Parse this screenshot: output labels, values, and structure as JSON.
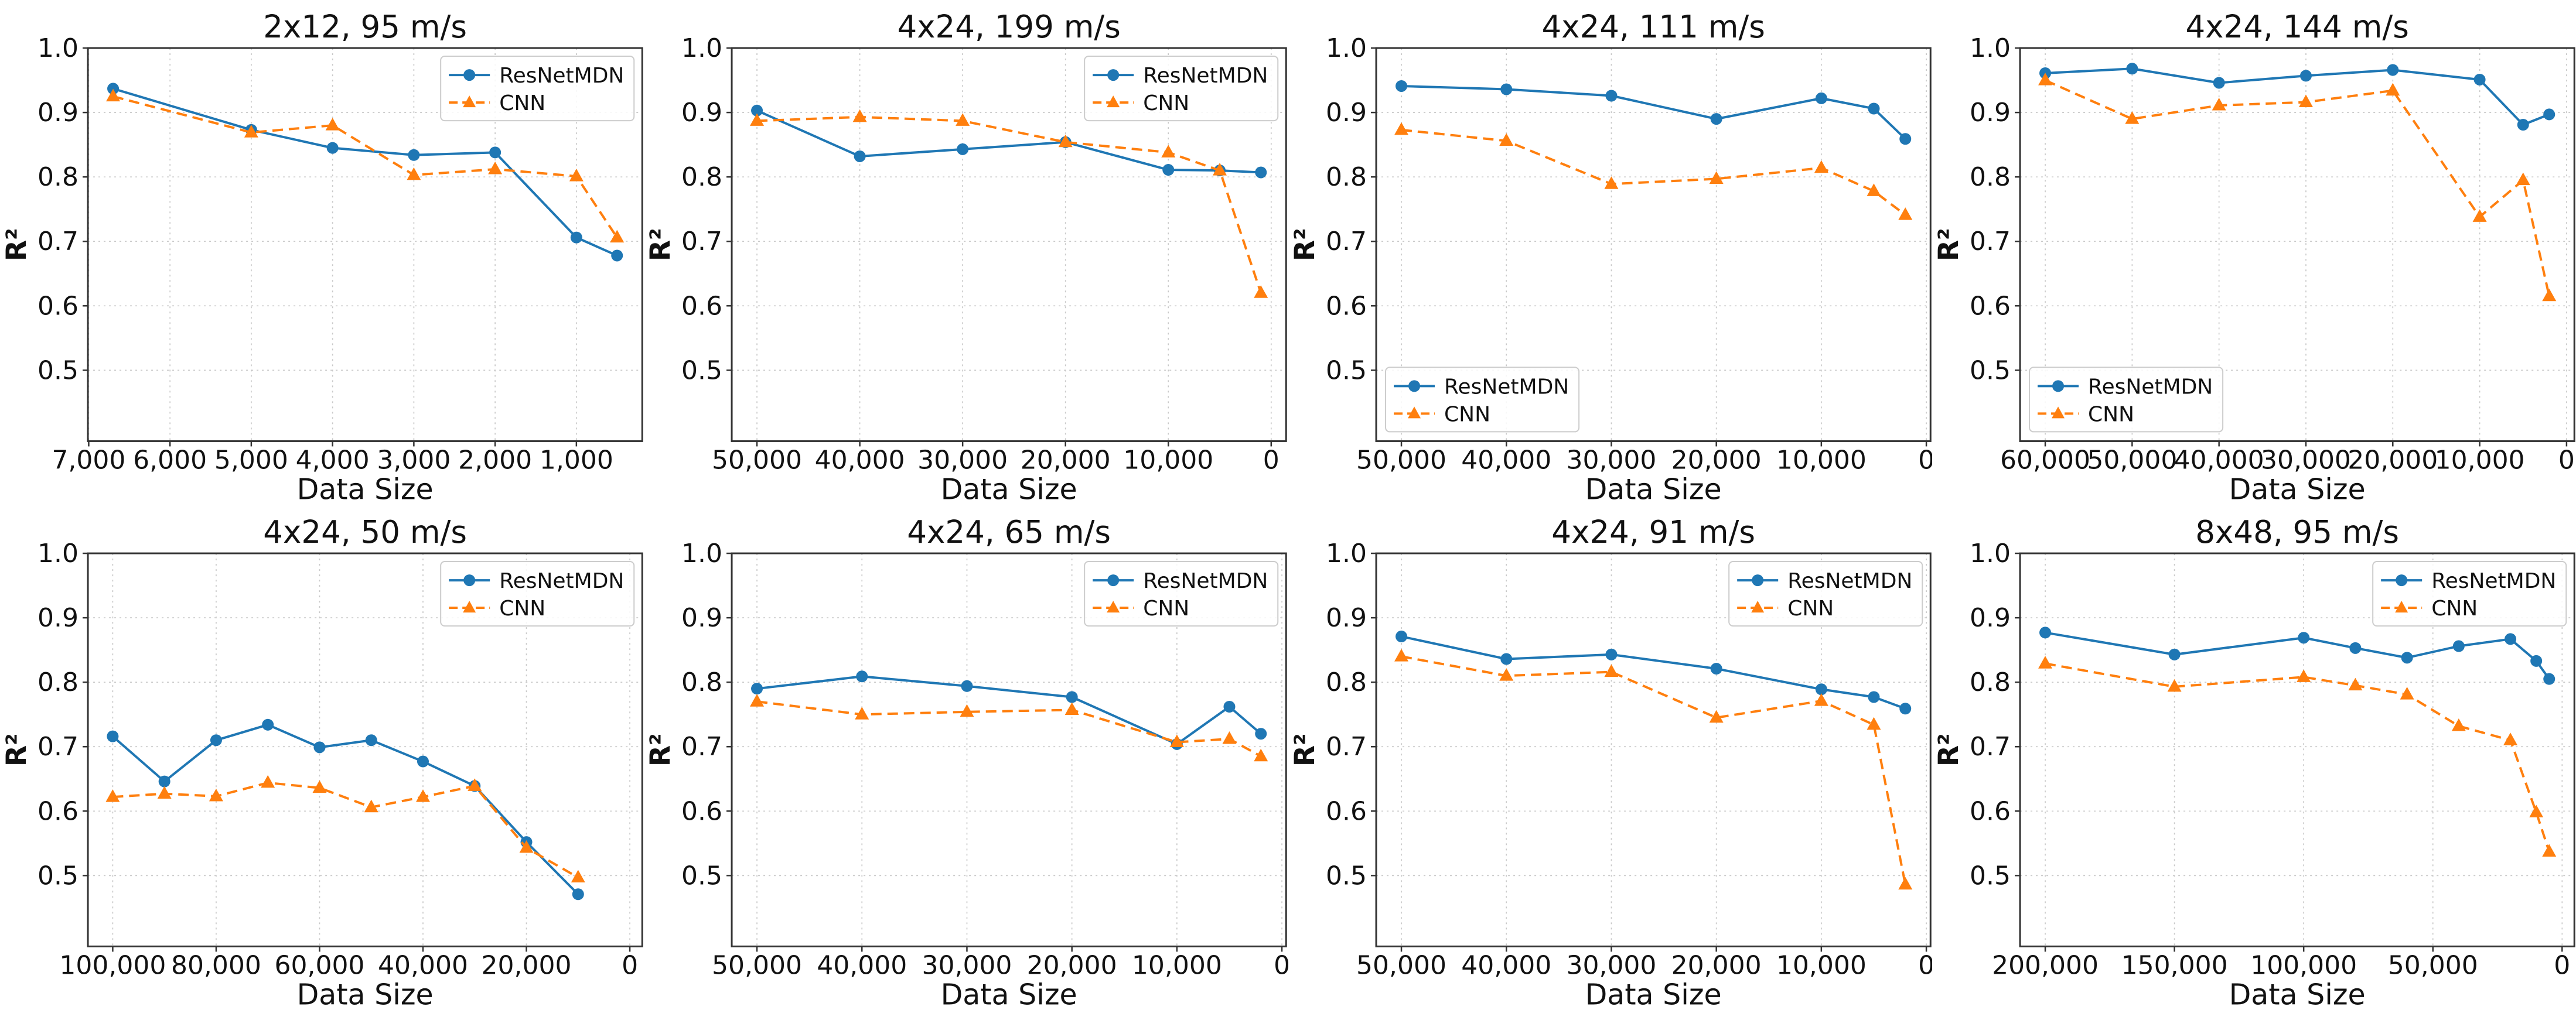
{
  "figure": {
    "xlabel": "Data Size",
    "ylabel": "R²",
    "yticks": [
      {
        "v": 1.0,
        "label": "1.0"
      },
      {
        "v": 0.9,
        "label": "0.9"
      },
      {
        "v": 0.8,
        "label": "0.8"
      },
      {
        "v": 0.7,
        "label": "0.7"
      },
      {
        "v": 0.6,
        "label": "0.6"
      },
      {
        "v": 0.5,
        "label": "0.5"
      }
    ],
    "series_style": [
      {
        "name": "ResNetMDN",
        "color": "#1f77b4",
        "marker": "circle",
        "line": "solid"
      },
      {
        "name": "CNN",
        "color": "#ff7f0e",
        "marker": "triangle",
        "line": "dashed"
      }
    ],
    "grid_color": "#c9c9c9",
    "spine_color": "#333333",
    "text_color": "#111111",
    "background": "#ffffff"
  },
  "chart_data": [
    {
      "type": "line",
      "title": "2x12, 95 m/s",
      "xlabel": "Data Size",
      "ylabel": "R²",
      "legend_position": "top-right",
      "grid": true,
      "x_axis_reversed": true,
      "xlim": [
        7010,
        190
      ],
      "ylim": [
        0.39,
        1.0
      ],
      "xticks": [
        {
          "v": 7000,
          "label": "7,000"
        },
        {
          "v": 6000,
          "label": "6,000"
        },
        {
          "v": 5000,
          "label": "5,000"
        },
        {
          "v": 4000,
          "label": "4,000"
        },
        {
          "v": 3000,
          "label": "3,000"
        },
        {
          "v": 2000,
          "label": "2,000"
        },
        {
          "v": 1000,
          "label": "1,000"
        }
      ],
      "series": [
        {
          "name": "ResNetMDN",
          "x": [
            6700,
            5000,
            4000,
            3000,
            2000,
            1000,
            500
          ],
          "y": [
            0.937,
            0.873,
            0.845,
            0.834,
            0.838,
            0.706,
            0.678
          ]
        },
        {
          "name": "CNN",
          "x": [
            6700,
            5000,
            4000,
            3000,
            2000,
            1000,
            500
          ],
          "y": [
            0.925,
            0.869,
            0.88,
            0.803,
            0.812,
            0.801,
            0.706
          ]
        }
      ]
    },
    {
      "type": "line",
      "title": "4x24, 199 m/s",
      "xlabel": "Data Size",
      "ylabel": "R²",
      "legend_position": "top-right",
      "grid": true,
      "x_axis_reversed": true,
      "xlim": [
        52450,
        -1450
      ],
      "ylim": [
        0.39,
        1.0
      ],
      "xticks": [
        {
          "v": 50000,
          "label": "50,000"
        },
        {
          "v": 40000,
          "label": "40,000"
        },
        {
          "v": 30000,
          "label": "30,000"
        },
        {
          "v": 20000,
          "label": "20,000"
        },
        {
          "v": 10000,
          "label": "10,000"
        },
        {
          "v": 0,
          "label": "0"
        }
      ],
      "series": [
        {
          "name": "ResNetMDN",
          "x": [
            50000,
            40000,
            30000,
            20000,
            10000,
            5000,
            1000
          ],
          "y": [
            0.903,
            0.832,
            0.843,
            0.854,
            0.811,
            0.81,
            0.807
          ]
        },
        {
          "name": "CNN",
          "x": [
            50000,
            40000,
            30000,
            20000,
            10000,
            5000,
            1000
          ],
          "y": [
            0.887,
            0.893,
            0.887,
            0.854,
            0.838,
            0.81,
            0.62
          ]
        }
      ]
    },
    {
      "type": "line",
      "title": "4x24, 111 m/s",
      "xlabel": "Data Size",
      "ylabel": "R²",
      "legend_position": "bottom-left",
      "grid": true,
      "x_axis_reversed": true,
      "xlim": [
        52400,
        -400
      ],
      "ylim": [
        0.39,
        1.0
      ],
      "xticks": [
        {
          "v": 50000,
          "label": "50,000"
        },
        {
          "v": 40000,
          "label": "40,000"
        },
        {
          "v": 30000,
          "label": "30,000"
        },
        {
          "v": 20000,
          "label": "20,000"
        },
        {
          "v": 10000,
          "label": "10,000"
        },
        {
          "v": 0,
          "label": "0"
        }
      ],
      "series": [
        {
          "name": "ResNetMDN",
          "x": [
            50000,
            40000,
            30000,
            20000,
            10000,
            5000,
            2000
          ],
          "y": [
            0.941,
            0.936,
            0.926,
            0.89,
            0.922,
            0.906,
            0.859
          ]
        },
        {
          "name": "CNN",
          "x": [
            50000,
            40000,
            30000,
            20000,
            10000,
            5000,
            2000
          ],
          "y": [
            0.873,
            0.856,
            0.789,
            0.797,
            0.814,
            0.778,
            0.741
          ]
        }
      ]
    },
    {
      "type": "line",
      "title": "4x24, 144 m/s",
      "xlabel": "Data Size",
      "ylabel": "R²",
      "legend_position": "bottom-left",
      "grid": true,
      "x_axis_reversed": true,
      "xlim": [
        62900,
        -900
      ],
      "ylim": [
        0.39,
        1.0
      ],
      "xticks": [
        {
          "v": 60000,
          "label": "60,000"
        },
        {
          "v": 50000,
          "label": "50,000"
        },
        {
          "v": 40000,
          "label": "40,000"
        },
        {
          "v": 30000,
          "label": "30,000"
        },
        {
          "v": 20000,
          "label": "20,000"
        },
        {
          "v": 10000,
          "label": "10,000"
        },
        {
          "v": 0,
          "label": "0"
        }
      ],
      "series": [
        {
          "name": "ResNetMDN",
          "x": [
            60000,
            50000,
            40000,
            30000,
            20000,
            10000,
            5000,
            2000
          ],
          "y": [
            0.961,
            0.968,
            0.946,
            0.957,
            0.966,
            0.951,
            0.881,
            0.897
          ]
        },
        {
          "name": "CNN",
          "x": [
            60000,
            50000,
            40000,
            30000,
            20000,
            10000,
            5000,
            2000
          ],
          "y": [
            0.95,
            0.89,
            0.911,
            0.916,
            0.934,
            0.738,
            0.795,
            0.615
          ]
        }
      ]
    },
    {
      "type": "line",
      "title": "4x24, 50 m/s",
      "xlabel": "Data Size",
      "ylabel": "R²",
      "legend_position": "top-right",
      "grid": true,
      "x_axis_reversed": true,
      "xlim": [
        104800,
        -2400
      ],
      "ylim": [
        0.39,
        1.0
      ],
      "xticks": [
        {
          "v": 100000,
          "label": "100,000"
        },
        {
          "v": 80000,
          "label": "80,000"
        },
        {
          "v": 60000,
          "label": "60,000"
        },
        {
          "v": 40000,
          "label": "40,000"
        },
        {
          "v": 20000,
          "label": "20,000"
        },
        {
          "v": 0,
          "label": "0"
        }
      ],
      "series": [
        {
          "name": "ResNetMDN",
          "x": [
            100000,
            90000,
            80000,
            70000,
            60000,
            50000,
            40000,
            30000,
            20000,
            10000
          ],
          "y": [
            0.716,
            0.646,
            0.71,
            0.734,
            0.699,
            0.71,
            0.677,
            0.639,
            0.552,
            0.471
          ]
        },
        {
          "name": "CNN",
          "x": [
            100000,
            90000,
            80000,
            70000,
            60000,
            50000,
            40000,
            30000,
            20000,
            10000
          ],
          "y": [
            0.622,
            0.627,
            0.623,
            0.644,
            0.636,
            0.606,
            0.622,
            0.639,
            0.543,
            0.497
          ]
        }
      ]
    },
    {
      "type": "line",
      "title": "4x24, 65 m/s",
      "xlabel": "Data Size",
      "ylabel": "R²",
      "legend_position": "top-right",
      "grid": true,
      "x_axis_reversed": true,
      "xlim": [
        52400,
        -400
      ],
      "ylim": [
        0.39,
        1.0
      ],
      "xticks": [
        {
          "v": 50000,
          "label": "50,000"
        },
        {
          "v": 40000,
          "label": "40,000"
        },
        {
          "v": 30000,
          "label": "30,000"
        },
        {
          "v": 20000,
          "label": "20,000"
        },
        {
          "v": 10000,
          "label": "10,000"
        },
        {
          "v": 0,
          "label": "0"
        }
      ],
      "series": [
        {
          "name": "ResNetMDN",
          "x": [
            50000,
            40000,
            30000,
            20000,
            10000,
            5000,
            2000
          ],
          "y": [
            0.79,
            0.809,
            0.794,
            0.777,
            0.704,
            0.762,
            0.72
          ]
        },
        {
          "name": "CNN",
          "x": [
            50000,
            40000,
            30000,
            20000,
            10000,
            5000,
            2000
          ],
          "y": [
            0.77,
            0.75,
            0.754,
            0.757,
            0.707,
            0.712,
            0.685
          ]
        }
      ]
    },
    {
      "type": "line",
      "title": "4x24, 91 m/s",
      "xlabel": "Data Size",
      "ylabel": "R²",
      "legend_position": "top-right",
      "grid": true,
      "x_axis_reversed": true,
      "xlim": [
        52400,
        -400
      ],
      "ylim": [
        0.39,
        1.0
      ],
      "xticks": [
        {
          "v": 50000,
          "label": "50,000"
        },
        {
          "v": 40000,
          "label": "40,000"
        },
        {
          "v": 30000,
          "label": "30,000"
        },
        {
          "v": 20000,
          "label": "20,000"
        },
        {
          "v": 10000,
          "label": "10,000"
        },
        {
          "v": 0,
          "label": "0"
        }
      ],
      "series": [
        {
          "name": "ResNetMDN",
          "x": [
            50000,
            40000,
            30000,
            20000,
            10000,
            5000,
            2000
          ],
          "y": [
            0.871,
            0.836,
            0.843,
            0.821,
            0.789,
            0.777,
            0.759
          ]
        },
        {
          "name": "CNN",
          "x": [
            50000,
            40000,
            30000,
            20000,
            10000,
            5000,
            2000
          ],
          "y": [
            0.84,
            0.81,
            0.816,
            0.745,
            0.771,
            0.734,
            0.486
          ]
        }
      ]
    },
    {
      "type": "line",
      "title": "8x48, 95 m/s",
      "xlabel": "Data Size",
      "ylabel": "R²",
      "legend_position": "top-right",
      "grid": true,
      "x_axis_reversed": true,
      "xlim": [
        209750,
        -4750
      ],
      "ylim": [
        0.39,
        1.0
      ],
      "xticks": [
        {
          "v": 200000,
          "label": "200,000"
        },
        {
          "v": 150000,
          "label": "150,000"
        },
        {
          "v": 100000,
          "label": "100,000"
        },
        {
          "v": 50000,
          "label": "50,000"
        },
        {
          "v": 0,
          "label": "0"
        }
      ],
      "series": [
        {
          "name": "ResNetMDN",
          "x": [
            200000,
            150000,
            100000,
            80000,
            60000,
            40000,
            20000,
            10000,
            5000
          ],
          "y": [
            0.877,
            0.843,
            0.869,
            0.853,
            0.838,
            0.856,
            0.867,
            0.833,
            0.805
          ]
        },
        {
          "name": "CNN",
          "x": [
            200000,
            150000,
            100000,
            80000,
            60000,
            40000,
            20000,
            10000,
            5000
          ],
          "y": [
            0.829,
            0.793,
            0.808,
            0.795,
            0.781,
            0.732,
            0.71,
            0.598,
            0.537
          ]
        }
      ]
    }
  ]
}
